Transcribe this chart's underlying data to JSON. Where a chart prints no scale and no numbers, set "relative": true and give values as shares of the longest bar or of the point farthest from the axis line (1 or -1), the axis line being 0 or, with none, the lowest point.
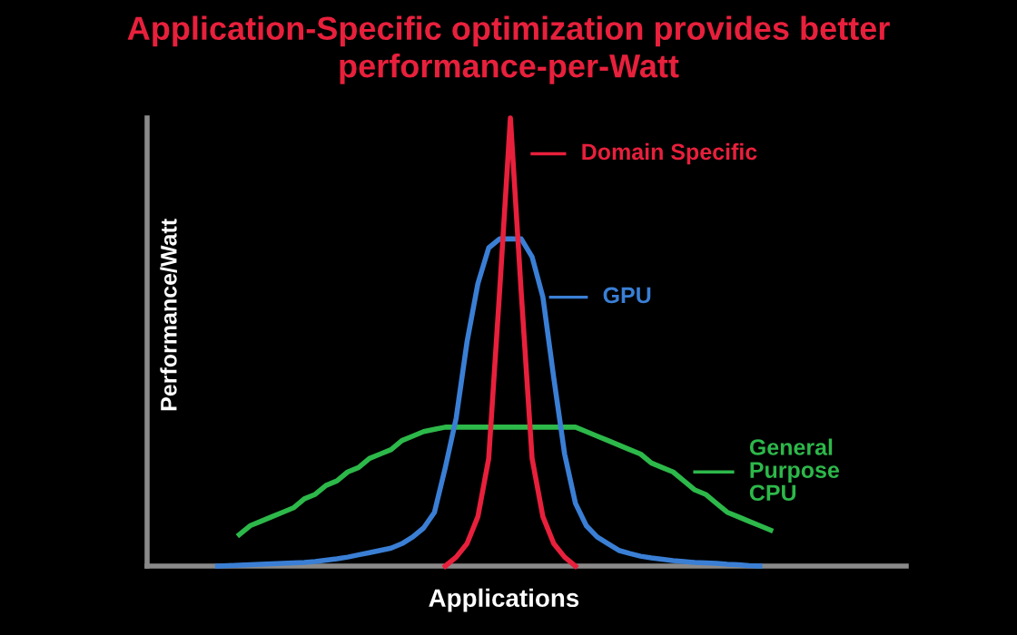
{
  "chart_data": {
    "type": "line",
    "title": "Application-Specific optimization provides better\nperformance-per-Watt",
    "xlabel": "Applications",
    "ylabel": "Performance/Watt",
    "relative": true,
    "legend": "right",
    "marker": "none",
    "line_style": "solid",
    "categories": [
      null,
      null,
      null,
      null,
      null,
      null,
      null,
      null,
      null,
      null,
      null,
      null,
      null,
      null,
      null,
      null,
      null,
      null,
      null,
      null,
      null,
      null,
      null,
      null,
      null,
      null,
      null,
      null,
      null,
      null,
      null,
      null,
      null,
      null,
      null,
      null,
      null,
      null,
      null,
      null,
      null,
      null,
      null,
      null,
      null,
      null,
      null,
      null,
      null,
      null,
      null,
      null,
      null,
      null,
      null,
      null,
      null,
      null,
      null,
      null,
      null,
      null,
      null,
      null,
      null,
      null,
      null,
      null,
      null,
      null
    ],
    "series": [
      {
        "name": "Domain Specific",
        "color": "#e8203c",
        "values": [
          null,
          null,
          null,
          null,
          null,
          null,
          null,
          null,
          null,
          null,
          null,
          null,
          null,
          null,
          null,
          null,
          null,
          null,
          null,
          null,
          null,
          null,
          null,
          null,
          null,
          null,
          null,
          0,
          0.02,
          0.05,
          0.11,
          0.24,
          0.61,
          1,
          0.61,
          0.24,
          0.11,
          0.05,
          0.02,
          0,
          null,
          null,
          null,
          null,
          null,
          null,
          null,
          null,
          null,
          null,
          null,
          null,
          null,
          null,
          null,
          null,
          null,
          null,
          null,
          null,
          null,
          null,
          null,
          null,
          null,
          null,
          null,
          null,
          null,
          null
        ]
      },
      {
        "name": "GPU",
        "color": "#3a7fd5",
        "values": [
          null,
          null,
          null,
          null,
          null,
          null,
          0,
          0.001,
          0.002,
          0.003,
          0.004,
          0.005,
          0.006,
          0.007,
          0.008,
          0.01,
          0.013,
          0.016,
          0.02,
          0.025,
          0.03,
          0.035,
          0.04,
          0.05,
          0.065,
          0.085,
          0.12,
          0.22,
          0.33,
          0.5,
          0.63,
          0.71,
          0.73,
          0.73,
          0.73,
          0.69,
          0.6,
          0.42,
          0.25,
          0.14,
          0.09,
          0.065,
          0.05,
          0.035,
          0.028,
          0.022,
          0.018,
          0.015,
          0.012,
          0.01,
          0.008,
          0.007,
          0.006,
          0.004,
          0.003,
          0.001,
          0,
          null,
          null,
          null,
          null,
          null,
          null,
          null,
          null,
          null,
          null,
          null,
          null,
          null
        ]
      },
      {
        "name": "General Purpose CPU",
        "color": "#2db84a",
        "values": [
          null,
          null,
          null,
          null,
          null,
          null,
          null,
          null,
          0.07,
          0.09,
          0.1,
          0.11,
          0.12,
          0.13,
          0.15,
          0.16,
          0.18,
          0.19,
          0.21,
          0.22,
          0.24,
          0.25,
          0.26,
          0.28,
          0.29,
          0.3,
          0.305,
          0.31,
          0.31,
          0.31,
          0.31,
          0.31,
          0.31,
          0.31,
          0.31,
          0.31,
          0.31,
          0.31,
          0.31,
          0.31,
          0.3,
          0.29,
          0.28,
          0.27,
          0.26,
          0.25,
          0.23,
          0.22,
          0.21,
          0.19,
          0.17,
          0.16,
          0.14,
          0.12,
          0.11,
          0.1,
          0.09,
          0.08,
          null,
          null,
          null,
          null,
          null,
          null,
          null,
          null,
          null,
          null,
          null,
          null
        ]
      }
    ]
  }
}
